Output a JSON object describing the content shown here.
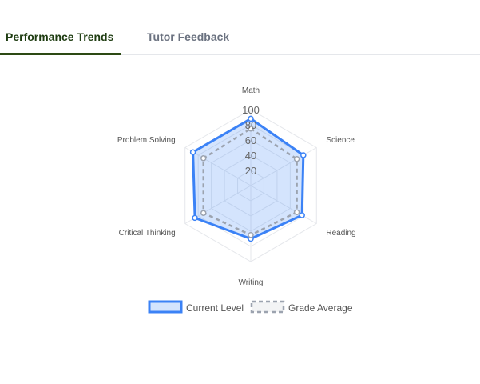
{
  "tabs": [
    {
      "label": "Performance Trends",
      "active": true
    },
    {
      "label": "Tutor Feedback",
      "active": false
    }
  ],
  "colors": {
    "current": "#3b82f6",
    "current_fill": "rgba(59,130,246,0.22)",
    "average": "#9ca3af",
    "grid": "#e5e7eb",
    "tick_label": "#666666",
    "axis_label": "#555555"
  },
  "chart_data": {
    "type": "radar",
    "axes": [
      "Math",
      "Science",
      "Reading",
      "Writing",
      "Critical Thinking",
      "Problem Solving"
    ],
    "rmin": 0,
    "rmax": 100,
    "ticks": [
      20,
      40,
      60,
      80,
      100
    ],
    "series": [
      {
        "name": "Current Level",
        "values": [
          88,
          80,
          78,
          70,
          85,
          88
        ]
      },
      {
        "name": "Grade Average",
        "values": [
          75,
          70,
          70,
          65,
          72,
          72
        ]
      }
    ],
    "legend_position": "bottom"
  }
}
